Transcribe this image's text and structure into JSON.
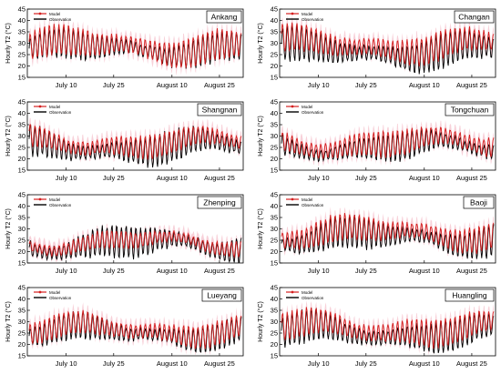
{
  "figure": {
    "ylabel": "Hourly T2 (°C)",
    "legend": {
      "model": "Model",
      "observation": "Observation"
    },
    "colors": {
      "model": "#d42020",
      "band": "#f6c6d0",
      "observation": "#000000"
    }
  },
  "chart_data": [
    {
      "type": "line",
      "station": "Ankang",
      "ylim": [
        15,
        45
      ],
      "yticks": [
        15,
        20,
        25,
        30,
        35,
        40,
        45
      ],
      "xticks": [
        "July 10",
        "July 25",
        "August 10",
        "August 25"
      ],
      "legend_position": "top-left",
      "series": [
        {
          "name": "Model",
          "base": 28,
          "amp": 6.5,
          "bias": 0.6
        },
        {
          "name": "Observation",
          "base": 27.5,
          "amp": 6.0
        }
      ]
    },
    {
      "type": "line",
      "station": "Changan",
      "ylim": [
        15,
        45
      ],
      "yticks": [
        15,
        20,
        25,
        30,
        35,
        40,
        45
      ],
      "xticks": [
        "July 10",
        "July 25",
        "August 10",
        "August 25"
      ],
      "legend_position": "top-left",
      "series": [
        {
          "name": "Model",
          "base": 28,
          "amp": 6.0,
          "bias": 1.2
        },
        {
          "name": "Observation",
          "base": 26.5,
          "amp": 7.0
        }
      ]
    },
    {
      "type": "line",
      "station": "Shangnan",
      "ylim": [
        15,
        45
      ],
      "yticks": [
        15,
        20,
        25,
        30,
        35,
        40,
        45
      ],
      "xticks": [
        "July 10",
        "July 25",
        "August 10",
        "August 25"
      ],
      "legend_position": "top-left",
      "series": [
        {
          "name": "Model",
          "base": 26,
          "amp": 5.0,
          "bias": 1.0
        },
        {
          "name": "Observation",
          "base": 25,
          "amp": 6.5
        }
      ]
    },
    {
      "type": "line",
      "station": "Tongchuan",
      "ylim": [
        15,
        45
      ],
      "yticks": [
        15,
        20,
        25,
        30,
        35,
        40,
        45
      ],
      "xticks": [
        "July 10",
        "July 25",
        "August 10",
        "August 25"
      ],
      "legend_position": "top-left",
      "series": [
        {
          "name": "Model",
          "base": 26,
          "amp": 5.5,
          "bias": 0.8
        },
        {
          "name": "Observation",
          "base": 25,
          "amp": 5.5
        }
      ]
    },
    {
      "type": "line",
      "station": "Zhenping",
      "ylim": [
        15,
        45
      ],
      "yticks": [
        15,
        20,
        25,
        30,
        35,
        40,
        45
      ],
      "xticks": [
        "July 10",
        "July 25",
        "August 10",
        "August 25"
      ],
      "legend_position": "top-left",
      "series": [
        {
          "name": "Model",
          "base": 23.5,
          "amp": 3.5,
          "bias": 0.5
        },
        {
          "name": "Observation",
          "base": 23,
          "amp": 6.5
        }
      ]
    },
    {
      "type": "line",
      "station": "Baoji",
      "ylim": [
        15,
        45
      ],
      "yticks": [
        15,
        20,
        25,
        30,
        35,
        40,
        45
      ],
      "xticks": [
        "July 10",
        "July 25",
        "August 10",
        "August 25"
      ],
      "legend_position": "top-left",
      "series": [
        {
          "name": "Model",
          "base": 27,
          "amp": 5.5,
          "bias": 1.2
        },
        {
          "name": "Observation",
          "base": 26,
          "amp": 6.5
        }
      ]
    },
    {
      "type": "line",
      "station": "Lueyang",
      "ylim": [
        15,
        45
      ],
      "yticks": [
        15,
        20,
        25,
        30,
        35,
        40,
        45
      ],
      "xticks": [
        "July 10",
        "July 25",
        "August 10",
        "August 25"
      ],
      "legend_position": "top-left",
      "series": [
        {
          "name": "Model",
          "base": 25.5,
          "amp": 5.0,
          "bias": 0.8
        },
        {
          "name": "Observation",
          "base": 25,
          "amp": 5.5
        }
      ]
    },
    {
      "type": "line",
      "station": "Huangling",
      "ylim": [
        15,
        45
      ],
      "yticks": [
        15,
        20,
        25,
        30,
        35,
        40,
        45
      ],
      "xticks": [
        "July 10",
        "July 25",
        "August 10",
        "August 25"
      ],
      "legend_position": "top-left",
      "series": [
        {
          "name": "Model",
          "base": 26,
          "amp": 6.0,
          "bias": 1.0
        },
        {
          "name": "Observation",
          "base": 25,
          "amp": 6.5
        }
      ]
    }
  ]
}
